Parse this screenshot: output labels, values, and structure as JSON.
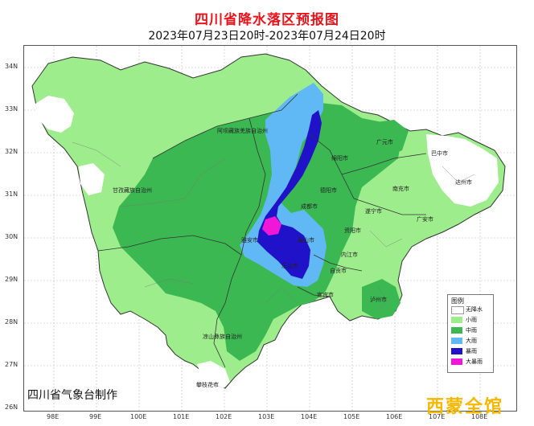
{
  "title": "四川省降水落区预报图",
  "subtitle": "2023年07月23日20时-2023年07月24日20时",
  "credit": "四川省气象台制作",
  "watermark": "西蒙全馆",
  "axes": {
    "longitude_labels": [
      "98E",
      "99E",
      "100E",
      "101E",
      "102E",
      "103E",
      "104E",
      "105E",
      "106E",
      "107E",
      "108E"
    ],
    "latitude_labels": [
      "34N",
      "33N",
      "32N",
      "31N",
      "30N",
      "29N",
      "28N",
      "27N",
      "26N"
    ]
  },
  "legend": {
    "title": "图例",
    "items": [
      {
        "label": "无降水",
        "color": "#ffffff"
      },
      {
        "label": "小雨",
        "color": "#9ded8c"
      },
      {
        "label": "中雨",
        "color": "#3cb853"
      },
      {
        "label": "大雨",
        "color": "#60b8f5"
      },
      {
        "label": "暴雨",
        "color": "#1f12c8"
      },
      {
        "label": "大暴雨",
        "color": "#f017d8"
      }
    ]
  },
  "places": {
    "aba": "阿坝藏族羌族自治州",
    "ganzi": "甘孜藏族自治州",
    "liangshan": "凉山彝族自治州",
    "guangyuan": "广元市",
    "bazhong": "巴中市",
    "mianyang": "绵阳市",
    "nanchong": "南充市",
    "dazhou": "达州市",
    "deyang": "德阳市",
    "chengdu": "成都市",
    "suining": "遂宁市",
    "guangan": "广安市",
    "ziyang": "资阳市",
    "meishan": "眉山市",
    "neijiang": "内江市",
    "yaan": "雅安市",
    "leshan": "乐山市",
    "zigong": "自贡市",
    "yibin": "宜宾市",
    "luzhou": "泸州市",
    "panzhihua": "攀枝花市"
  }
}
